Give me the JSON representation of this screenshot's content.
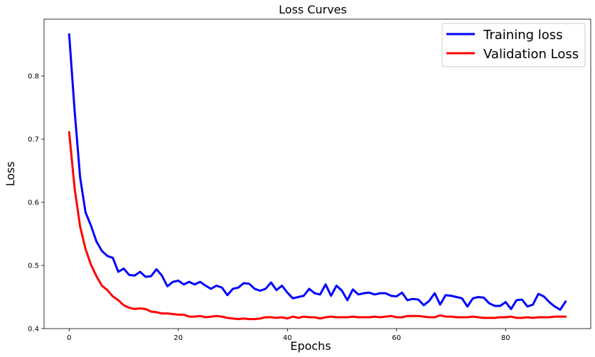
{
  "chart_data": {
    "type": "line",
    "title": "Loss Curves",
    "xlabel": "Epochs",
    "ylabel": "Loss",
    "xlim": [
      -4.6,
      95.6
    ],
    "ylim": [
      0.4,
      0.89
    ],
    "xticks": [
      0,
      20,
      40,
      60,
      80
    ],
    "yticks": [
      0.4,
      0.5,
      0.6,
      0.7,
      0.8
    ],
    "grid": false,
    "legend_position": "top-right",
    "series": [
      {
        "name": "Training loss",
        "color": "#0000ff",
        "x": [
          0,
          1,
          2,
          3,
          4,
          5,
          6,
          7,
          8,
          9,
          10,
          11,
          12,
          13,
          14,
          15,
          16,
          17,
          18,
          19,
          20,
          21,
          22,
          23,
          24,
          25,
          26,
          27,
          28,
          29,
          30,
          31,
          32,
          33,
          34,
          35,
          36,
          37,
          38,
          39,
          40,
          41,
          42,
          43,
          44,
          45,
          46,
          47,
          48,
          49,
          50,
          51,
          52,
          53,
          54,
          55,
          56,
          57,
          58,
          59,
          60,
          61,
          62,
          63,
          64,
          65,
          66,
          67,
          68,
          69,
          70,
          71,
          72,
          73,
          74,
          75,
          76,
          77,
          78,
          79,
          80,
          81,
          82,
          83,
          84,
          85,
          86,
          87,
          88,
          89,
          90,
          91
        ],
        "values": [
          0.866,
          0.745,
          0.64,
          0.584,
          0.563,
          0.538,
          0.523,
          0.515,
          0.512,
          0.49,
          0.495,
          0.485,
          0.484,
          0.49,
          0.482,
          0.483,
          0.494,
          0.484,
          0.467,
          0.474,
          0.476,
          0.47,
          0.474,
          0.47,
          0.474,
          0.468,
          0.463,
          0.468,
          0.465,
          0.453,
          0.463,
          0.465,
          0.472,
          0.471,
          0.463,
          0.46,
          0.463,
          0.473,
          0.461,
          0.468,
          0.457,
          0.448,
          0.45,
          0.452,
          0.463,
          0.456,
          0.454,
          0.47,
          0.452,
          0.468,
          0.46,
          0.445,
          0.462,
          0.454,
          0.456,
          0.457,
          0.454,
          0.456,
          0.456,
          0.452,
          0.451,
          0.457,
          0.445,
          0.447,
          0.446,
          0.437,
          0.444,
          0.456,
          0.438,
          0.453,
          0.452,
          0.45,
          0.448,
          0.435,
          0.448,
          0.45,
          0.449,
          0.44,
          0.436,
          0.436,
          0.442,
          0.431,
          0.445,
          0.446,
          0.435,
          0.438,
          0.455,
          0.451,
          0.442,
          0.435,
          0.43,
          0.443
        ]
      },
      {
        "name": "Validation Loss",
        "color": "#ff0000",
        "x": [
          0,
          1,
          2,
          3,
          4,
          5,
          6,
          7,
          8,
          9,
          10,
          11,
          12,
          13,
          14,
          15,
          16,
          17,
          18,
          19,
          20,
          21,
          22,
          23,
          24,
          25,
          26,
          27,
          28,
          29,
          30,
          31,
          32,
          33,
          34,
          35,
          36,
          37,
          38,
          39,
          40,
          41,
          42,
          43,
          44,
          45,
          46,
          47,
          48,
          49,
          50,
          51,
          52,
          53,
          54,
          55,
          56,
          57,
          58,
          59,
          60,
          61,
          62,
          63,
          64,
          65,
          66,
          67,
          68,
          69,
          70,
          71,
          72,
          73,
          74,
          75,
          76,
          77,
          78,
          79,
          80,
          81,
          82,
          83,
          84,
          85,
          86,
          87,
          88,
          89,
          90,
          91
        ],
        "values": [
          0.711,
          0.622,
          0.562,
          0.526,
          0.501,
          0.483,
          0.468,
          0.461,
          0.451,
          0.445,
          0.437,
          0.433,
          0.431,
          0.432,
          0.431,
          0.427,
          0.426,
          0.424,
          0.424,
          0.423,
          0.422,
          0.422,
          0.419,
          0.419,
          0.42,
          0.418,
          0.419,
          0.42,
          0.419,
          0.417,
          0.416,
          0.415,
          0.416,
          0.415,
          0.415,
          0.416,
          0.418,
          0.418,
          0.417,
          0.418,
          0.416,
          0.419,
          0.417,
          0.419,
          0.418,
          0.418,
          0.416,
          0.418,
          0.419,
          0.418,
          0.418,
          0.418,
          0.419,
          0.418,
          0.418,
          0.418,
          0.419,
          0.418,
          0.419,
          0.42,
          0.418,
          0.418,
          0.42,
          0.42,
          0.42,
          0.419,
          0.418,
          0.418,
          0.421,
          0.419,
          0.419,
          0.418,
          0.418,
          0.418,
          0.419,
          0.418,
          0.417,
          0.417,
          0.417,
          0.418,
          0.418,
          0.419,
          0.417,
          0.417,
          0.418,
          0.417,
          0.418,
          0.418,
          0.418,
          0.419,
          0.419,
          0.419
        ]
      }
    ]
  }
}
